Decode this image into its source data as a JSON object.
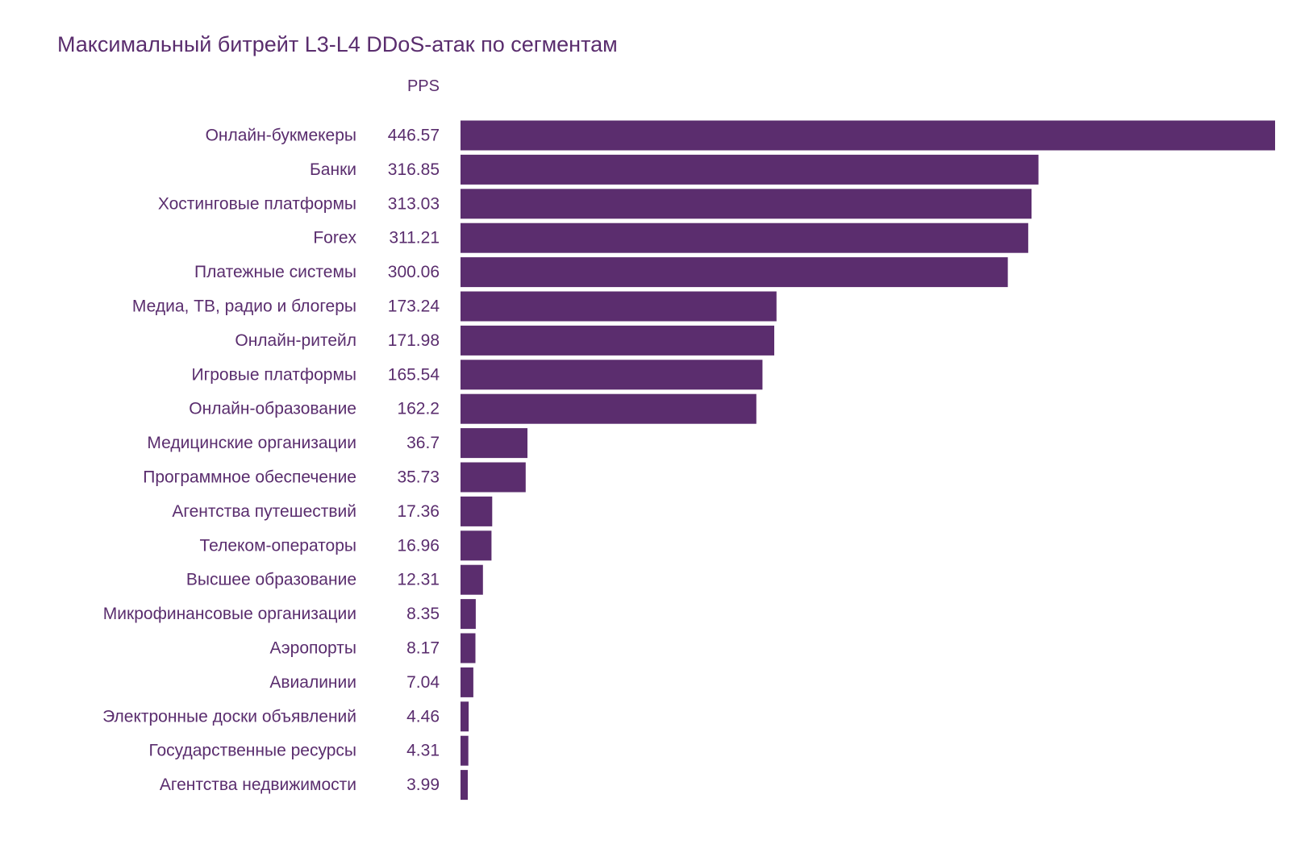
{
  "chart_data": {
    "type": "bar",
    "orientation": "horizontal",
    "title": "Максимальный битрейт L3-L4 DDoS-атак по сегментам",
    "unit": "PPS",
    "bar_color": "#5b2d6e",
    "text_color": "#5a2d6e",
    "xlim": [
      0,
      446.57
    ],
    "categories": [
      "Онлайн-букмекеры",
      "Банки",
      "Хостинговые платформы",
      "Forex",
      "Платежные системы",
      "Медиа, ТВ, радио и блогеры",
      "Онлайн-ритейл",
      "Игровые платформы",
      "Онлайн-образование",
      "Медицинские организации",
      "Программное обеспечение",
      "Агентства путешествий",
      "Телеком-операторы",
      "Высшее образование",
      "Микрофинансовые организации",
      "Аэропорты",
      "Авиалинии",
      "Электронные доски объявлений",
      "Государственные ресурсы",
      "Агентства недвижимости"
    ],
    "values": [
      446.57,
      316.85,
      313.03,
      311.21,
      300.06,
      173.24,
      171.98,
      165.54,
      162.2,
      36.7,
      35.73,
      17.36,
      16.96,
      12.31,
      8.35,
      8.17,
      7.04,
      4.46,
      4.31,
      3.99
    ],
    "value_labels": [
      "446.57",
      "316.85",
      "313.03",
      "311.21",
      "300.06",
      "173.24",
      "171.98",
      "165.54",
      "162.2",
      "36.7",
      "35.73",
      "17.36",
      "16.96",
      "12.31",
      "8.35",
      "8.17",
      "7.04",
      "4.46",
      "4.31",
      "3.99"
    ],
    "grid": false,
    "legend": "none"
  }
}
